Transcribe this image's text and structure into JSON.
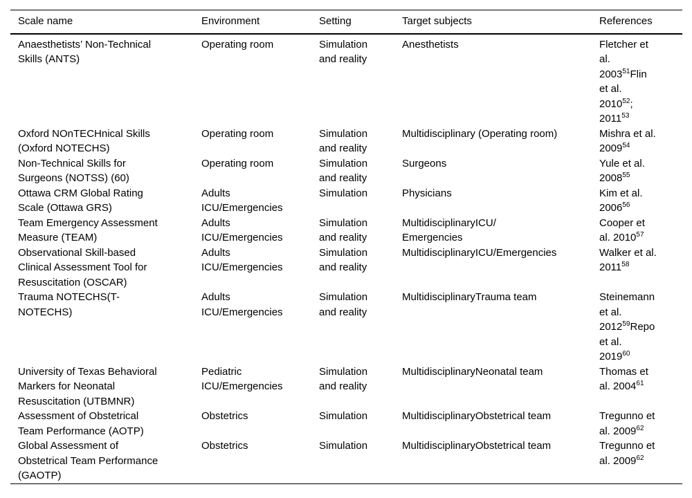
{
  "document": {
    "background_color": "#ffffff",
    "text_color": "#000000"
  },
  "table": {
    "columns": [
      "Scale name",
      "Environment",
      "Setting",
      "Target subjects",
      "References"
    ],
    "rows": [
      {
        "scale_name": "Anaesthetists’ Non-Technical\nSkills (ANTS)",
        "environment": "Operating room",
        "setting": "Simulation\nand reality",
        "target_subjects": "Anesthetists",
        "references": "Fletcher et\nal.\n2003^51^Flin\net al.\n2010^52^;\n2011^53^"
      },
      {
        "scale_name": "Oxford NOnTECHnical Skills\n(Oxford NOTECHS)",
        "environment": "Operating room",
        "setting": "Simulation\nand reality",
        "target_subjects": "Multidisciplinary (Operating room)",
        "references": "Mishra et al.\n2009^54^"
      },
      {
        "scale_name": "Non-Technical Skills for\nSurgeons (NOTSS) (60)",
        "environment": "Operating room",
        "setting": "Simulation\nand reality",
        "target_subjects": "Surgeons",
        "references": "Yule et al.\n2008^55^"
      },
      {
        "scale_name": "Ottawa CRM Global Rating\nScale (Ottawa GRS)",
        "environment": "Adults\nICU/Emergencies",
        "setting": "Simulation",
        "target_subjects": "Physicians",
        "references": "Kim et al.\n2006^56^"
      },
      {
        "scale_name": "Team Emergency Assessment\nMeasure (TEAM)",
        "environment": "Adults\nICU/Emergencies",
        "setting": "Simulation\nand reality",
        "target_subjects": "MultidisciplinaryICU/\nEmergencies",
        "references": "Cooper et\nal. 2010^57^"
      },
      {
        "scale_name": "Observational Skill-based\nClinical Assessment Tool for\nResuscitation (OSCAR)",
        "environment": "Adults\nICU/Emergencies",
        "setting": "Simulation\nand reality",
        "target_subjects": "MultidisciplinaryICU/Emergencies",
        "references": "Walker et al.\n2011^58^"
      },
      {
        "scale_name": "Trauma NOTECHS(T-\nNOTECHS)",
        "environment": "Adults\nICU/Emergencies",
        "setting": "Simulation\nand reality",
        "target_subjects": "MultidisciplinaryTrauma team",
        "references": "Steinemann\net al.\n2012^59^Repo\net al.\n2019^60^"
      },
      {
        "scale_name": "University of Texas Behavioral\nMarkers for Neonatal\nResuscitation (UTBMNR)",
        "environment": "Pediatric\nICU/Emergencies",
        "setting": "Simulation\nand reality",
        "target_subjects": "MultidisciplinaryNeonatal team",
        "references": "Thomas et\nal. 2004^61^"
      },
      {
        "scale_name": "Assessment of Obstetrical\nTeam Performance (AOTP)",
        "environment": "Obstetrics",
        "setting": "Simulation",
        "target_subjects": "MultidisciplinaryObstetrical team",
        "references": "Tregunno et\nal. 2009^62^"
      },
      {
        "scale_name": "Global Assessment of\nObstetrical Team Performance\n(GAOTP)",
        "environment": "Obstetrics",
        "setting": "Simulation",
        "target_subjects": "MultidisciplinaryObstetrical team",
        "references": "Tregunno et\nal. 2009^62^"
      }
    ]
  }
}
